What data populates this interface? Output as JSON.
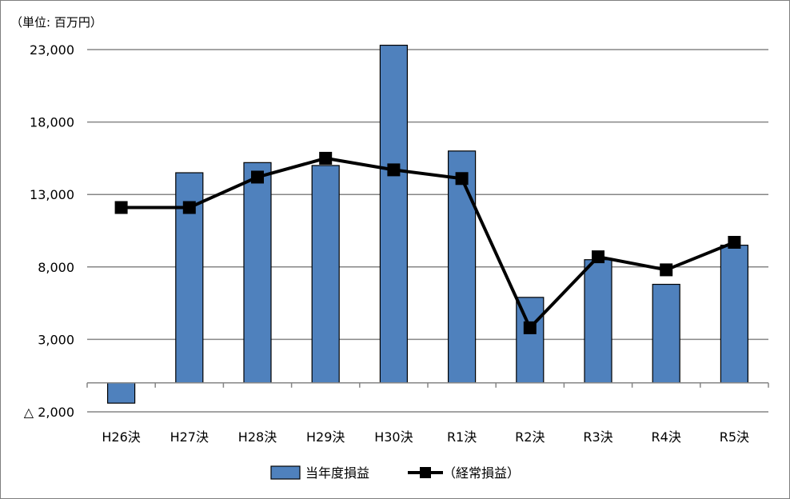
{
  "unit_label": "（単位: 百万円）",
  "chart_data": {
    "type": "bar",
    "categories": [
      "H26決",
      "H27決",
      "H28決",
      "H29決",
      "H30決",
      "R1決",
      "R2決",
      "R3決",
      "R4決",
      "R5決"
    ],
    "series": [
      {
        "name": "当年度損益",
        "chart_type": "bar",
        "color": "#4f81bd",
        "values": [
          -1400,
          14500,
          15200,
          15000,
          23300,
          16000,
          5900,
          8500,
          6800,
          9500
        ]
      },
      {
        "name": "（経常損益）",
        "chart_type": "line",
        "color": "#000000",
        "values": [
          12100,
          12100,
          14200,
          15500,
          14700,
          14100,
          3800,
          8700,
          7800,
          9700
        ]
      }
    ],
    "y_ticks": [
      {
        "value": -2000,
        "label": "△ 2,000"
      },
      {
        "value": 3000,
        "label": "3,000"
      },
      {
        "value": 8000,
        "label": "8,000"
      },
      {
        "value": 13000,
        "label": "13,000"
      },
      {
        "value": 18000,
        "label": "18,000"
      },
      {
        "value": 23000,
        "label": "23,000"
      }
    ],
    "ylim": [
      -2000,
      23000
    ],
    "grid": true,
    "legend_position": "bottom"
  }
}
